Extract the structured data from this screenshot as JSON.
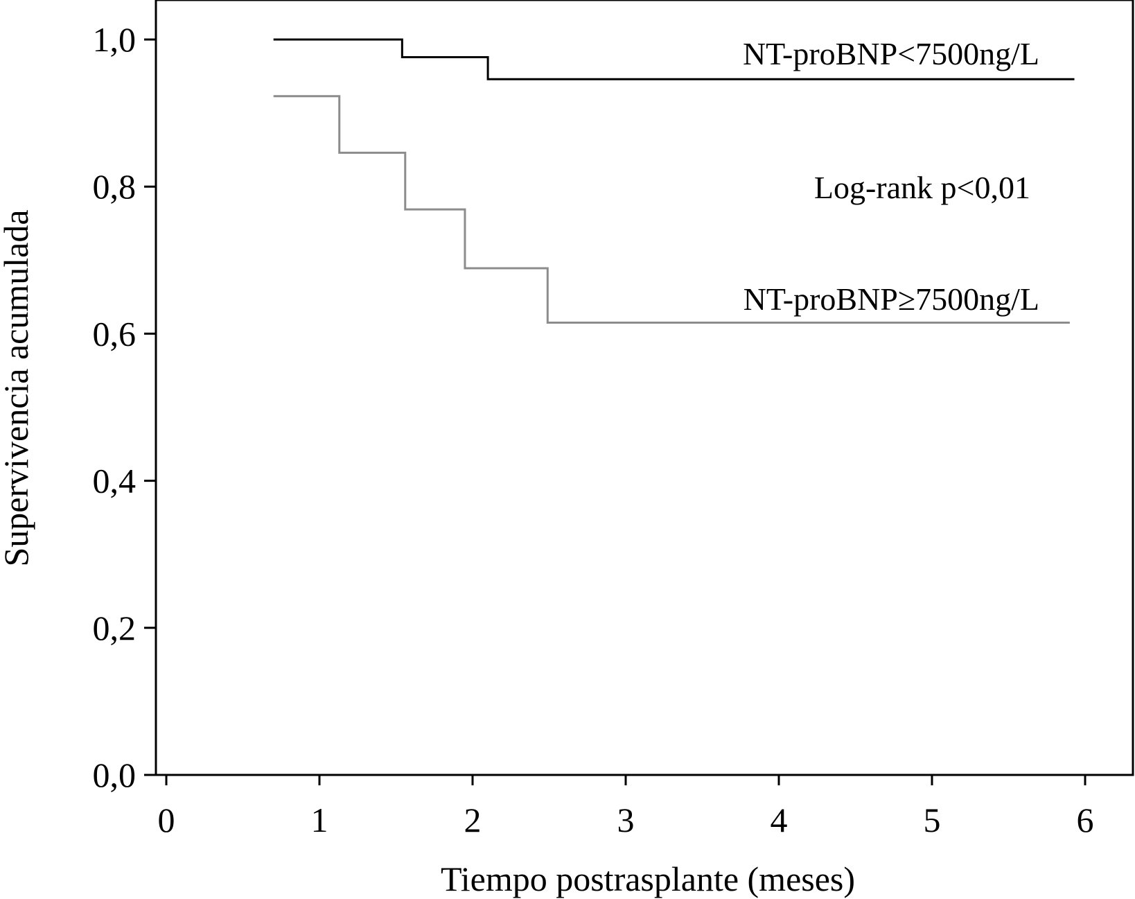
{
  "chart_data": {
    "type": "line",
    "step": true,
    "xlabel": "Tiempo postrasplante (meses)",
    "ylabel": "Supervivencia acumulada",
    "xlim": [
      0,
      6.15
    ],
    "ylim": [
      0,
      1.05
    ],
    "x_ticks": [
      0,
      1,
      2,
      3,
      4,
      5,
      6
    ],
    "x_tick_labels": [
      "0",
      "1",
      "2",
      "3",
      "4",
      "5",
      "6"
    ],
    "y_ticks": [
      0,
      0.2,
      0.4,
      0.6,
      0.8,
      1.0
    ],
    "y_tick_labels": [
      "0,0",
      "0,2",
      "0,4",
      "0,6",
      "0,8",
      "1,0"
    ],
    "grid": false,
    "series": [
      {
        "name": "NT-proBNP<7500ng/L",
        "color": "#000000",
        "x": [
          0.7,
          1.54,
          2.1,
          5.93
        ],
        "y": [
          1.0,
          0.976,
          0.946,
          0.946
        ]
      },
      {
        "name": "NT-proBNP≥7500ng/L",
        "color": "#8c8c8c",
        "x": [
          0.7,
          1.13,
          1.56,
          1.95,
          2.49,
          5.9
        ],
        "y": [
          0.923,
          0.846,
          0.769,
          0.689,
          0.615,
          0.615
        ]
      }
    ],
    "annotations": {
      "series0_label": "NT-proBNP<7500ng/L",
      "series1_label": "NT-proBNP≥7500ng/L",
      "logrank": "Log-rank p<0,01"
    }
  }
}
